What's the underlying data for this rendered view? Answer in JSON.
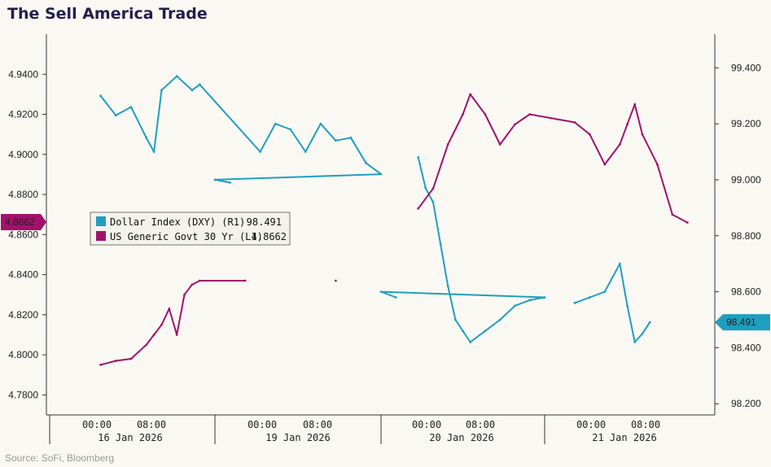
{
  "title": "The Sell America Trade",
  "source": "Source: SoFi, Bloomberg",
  "colors": {
    "dxy": "#1e9fc0",
    "yield": "#a1136b",
    "axis": "#333333",
    "background": "#faf8f3"
  },
  "chart_data": {
    "type": "line",
    "title": "The Sell America Trade",
    "left_axis": {
      "ylim": [
        4.77,
        4.96
      ],
      "ticks": [
        "4.7800",
        "4.8000",
        "4.8200",
        "4.8400",
        "4.8600",
        "4.8800",
        "4.9000",
        "4.9200",
        "4.9400"
      ]
    },
    "right_axis": {
      "ylim": [
        98.16,
        99.52
      ],
      "ticks": [
        "98.200",
        "98.400",
        "98.600",
        "98.800",
        "99.000",
        "99.200",
        "99.400"
      ]
    },
    "x_tick_labels": [
      "00:00",
      "08:00",
      "00:00",
      "08:00",
      "00:00",
      "08:00",
      "00:00",
      "08:00"
    ],
    "x_day_labels": [
      "16 Jan 2026",
      "19 Jan 2026",
      "20 Jan 2026",
      "21 Jan 2026"
    ],
    "grid": false,
    "legend_position": "left-middle",
    "series": [
      {
        "name": "Dollar Index (DXY) (R1)",
        "axis": "right",
        "last_value": "98.491",
        "x": [
          "16 Jan 03:00",
          "16 Jan 05:00",
          "16 Jan 07:00",
          "16 Jan 09:00",
          "16 Jan 10:00",
          "16 Jan 11:00",
          "16 Jan 13:00",
          "16 Jan 15:00",
          "16 Jan 16:00",
          "19 Jan 02:00",
          "19 Jan 04:00",
          "19 Jan 06:00",
          "19 Jan 08:00",
          "19 Jan 10:00",
          "19 Jan 12:00",
          "19 Jan 14:00",
          "19 Jan 16:00",
          "19 Jan 18:00",
          "19 Jan 20:00",
          "19 Jan 22:00",
          "20 Jan 01:00",
          "20 Jan 02:00",
          "20 Jan 03:00",
          "20 Jan 04:00",
          "20 Jan 05:00",
          "20 Jan 06:00",
          "20 Jan 07:00",
          "20 Jan 08:00",
          "20 Jan 10:00",
          "20 Jan 12:00",
          "20 Jan 14:00",
          "20 Jan 16:00",
          "20 Jan 18:00",
          "20 Jan 20:00",
          "20 Jan 22:00",
          "21 Jan 00:00",
          "21 Jan 02:00",
          "21 Jan 04:00",
          "21 Jan 06:00",
          "21 Jan 07:00",
          "21 Jan 08:00",
          "21 Jan 09:00",
          "21 Jan 10:00"
        ],
        "values": [
          99.3,
          99.23,
          99.26,
          99.15,
          99.1,
          99.32,
          99.37,
          99.32,
          99.34,
          99.1,
          99.2,
          99.18,
          99.1,
          99.2,
          99.14,
          99.15,
          99.06,
          99.02,
          99.0,
          98.99,
          99.08,
          98.97,
          98.92,
          98.77,
          98.62,
          98.5,
          98.46,
          98.42,
          98.46,
          98.5,
          98.55,
          98.57,
          98.58,
          98.6,
          98.58,
          98.56,
          98.58,
          98.6,
          98.7,
          98.55,
          98.42,
          98.45,
          98.491
        ]
      },
      {
        "name": "US Generic Govt 30 Yr (L1)",
        "axis": "left",
        "last_value": "4.8662",
        "x": [
          "16 Jan 03:00",
          "16 Jan 05:00",
          "16 Jan 07:00",
          "16 Jan 09:00",
          "16 Jan 10:00",
          "16 Jan 11:00",
          "16 Jan 12:00",
          "16 Jan 13:00",
          "16 Jan 14:00",
          "16 Jan 15:00",
          "16 Jan 16:00",
          "19 Jan 00:00",
          "19 Jan 12:00",
          "20 Jan 01:00",
          "20 Jan 03:00",
          "20 Jan 05:00",
          "20 Jan 07:00",
          "20 Jan 08:00",
          "20 Jan 10:00",
          "20 Jan 12:00",
          "20 Jan 14:00",
          "20 Jan 16:00",
          "21 Jan 00:00",
          "21 Jan 02:00",
          "21 Jan 04:00",
          "21 Jan 06:00",
          "21 Jan 07:00",
          "21 Jan 08:00",
          "21 Jan 09:00",
          "21 Jan 11:00",
          "21 Jan 13:00",
          "21 Jan 15:00"
        ],
        "values": [
          4.795,
          4.797,
          4.798,
          4.805,
          4.81,
          4.815,
          4.823,
          4.81,
          4.83,
          4.835,
          4.837,
          4.837,
          4.837,
          4.873,
          4.883,
          4.905,
          4.92,
          4.93,
          4.92,
          4.905,
          4.915,
          4.92,
          4.916,
          4.91,
          4.895,
          4.905,
          4.915,
          4.925,
          4.91,
          4.895,
          4.87,
          4.866
        ]
      }
    ]
  }
}
